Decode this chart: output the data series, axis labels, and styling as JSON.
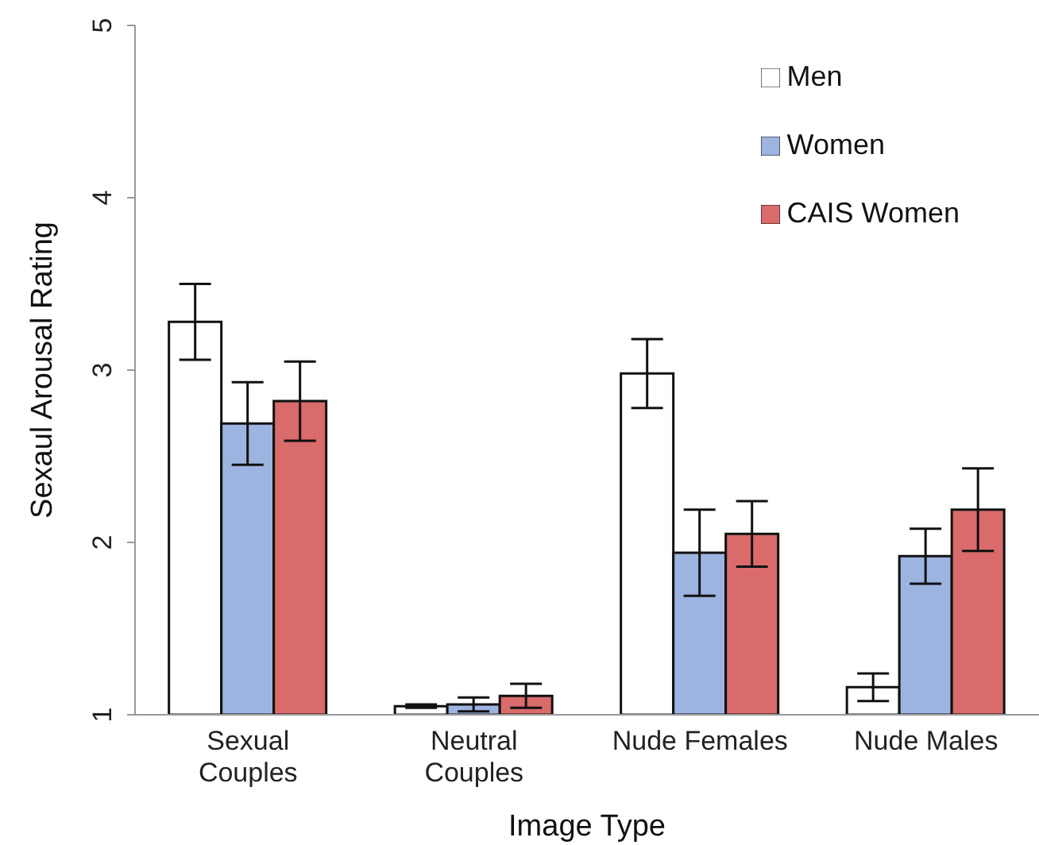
{
  "chart_data": {
    "type": "bar",
    "xlabel": "Image Type",
    "ylabel": "Sexaul Arousal Rating",
    "categories": [
      "Sexual\nCouples",
      "Neutral\nCouples",
      "Nude Females",
      "Nude Males"
    ],
    "series": [
      {
        "name": "Men",
        "color": "#ffffff",
        "values": [
          3.28,
          1.05,
          2.98,
          1.16
        ],
        "errors": [
          0.22,
          0.01,
          0.2,
          0.08
        ]
      },
      {
        "name": "Women",
        "color": "#9db3e0",
        "values": [
          2.69,
          1.06,
          1.94,
          1.92
        ],
        "errors": [
          0.24,
          0.04,
          0.25,
          0.16
        ]
      },
      {
        "name": "CAIS Women",
        "color": "#d96b6b",
        "values": [
          2.82,
          1.11,
          2.05,
          2.19
        ],
        "errors": [
          0.23,
          0.07,
          0.19,
          0.24
        ]
      }
    ],
    "ylim": [
      1,
      5
    ],
    "yticks": [
      1,
      2,
      3,
      4,
      5
    ],
    "grid": false,
    "legend": "top right"
  }
}
